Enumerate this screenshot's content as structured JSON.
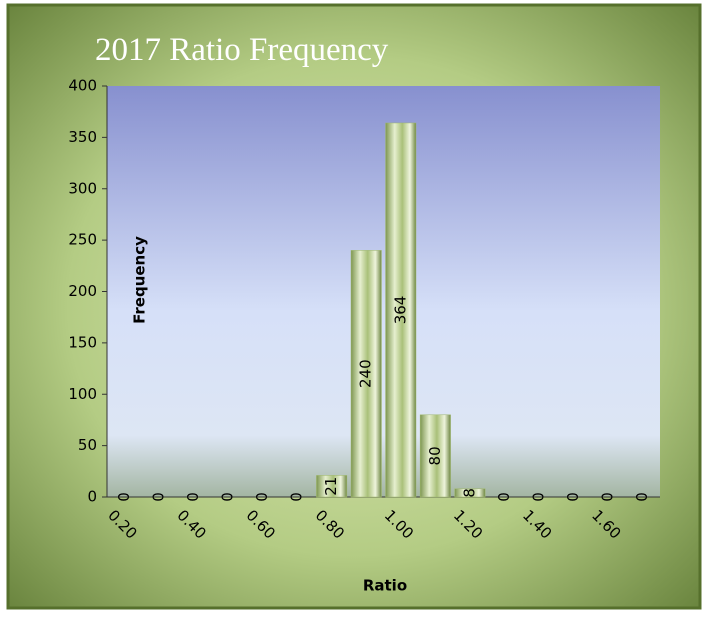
{
  "chart_data": {
    "type": "bar",
    "title": "2017 Ratio Frequency",
    "x_label": "Ratio",
    "y_label": "Frequency",
    "categories": [
      "0.20",
      null,
      "0.40",
      null,
      "0.60",
      null,
      "0.80",
      null,
      "1.00",
      null,
      "1.20",
      null,
      "1.40",
      null,
      "1.60",
      null
    ],
    "values": [
      0,
      0,
      0,
      0,
      0,
      0,
      21,
      240,
      364,
      80,
      8,
      0,
      0,
      0,
      0,
      0
    ],
    "color": "#9fb86a",
    "ylim": [
      0,
      400
    ],
    "yticks": [
      0,
      50,
      100,
      150,
      200,
      250,
      300,
      350,
      400
    ],
    "grid": false
  }
}
